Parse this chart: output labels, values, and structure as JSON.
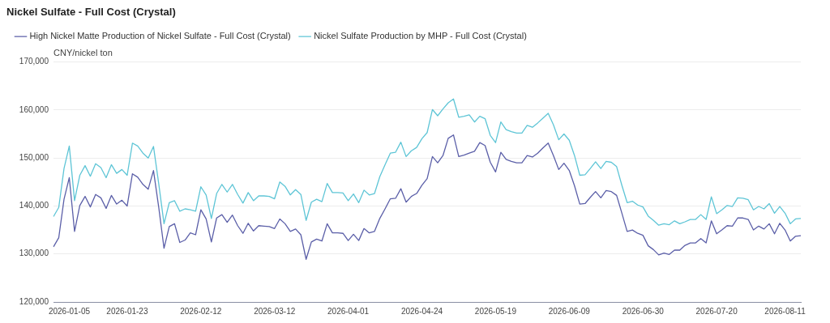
{
  "chart_data": {
    "type": "line",
    "title": "Nickel Sulfate - Full Cost (Crystal)",
    "ylabel": "CNY/nickel ton",
    "categories": [
      null,
      null,
      null,
      "2026-01-05",
      null,
      null,
      null,
      null,
      null,
      null,
      null,
      null,
      null,
      null,
      "2026-01-23",
      null,
      null,
      null,
      null,
      null,
      null,
      null,
      null,
      null,
      null,
      null,
      null,
      null,
      "2026-02-12",
      null,
      null,
      null,
      null,
      null,
      null,
      null,
      null,
      null,
      null,
      null,
      null,
      null,
      "2026-03-12",
      null,
      null,
      null,
      null,
      null,
      null,
      null,
      null,
      null,
      null,
      null,
      null,
      null,
      "2026-04-01",
      null,
      null,
      null,
      null,
      null,
      null,
      null,
      null,
      null,
      null,
      null,
      null,
      null,
      "2026-04-24",
      null,
      null,
      null,
      null,
      null,
      null,
      null,
      null,
      null,
      null,
      null,
      null,
      null,
      "2026-05-19",
      null,
      null,
      null,
      null,
      null,
      null,
      null,
      null,
      null,
      null,
      null,
      null,
      null,
      "2026-06-09",
      null,
      null,
      null,
      null,
      null,
      null,
      null,
      null,
      null,
      null,
      null,
      null,
      null,
      "2026-06-30",
      null,
      null,
      null,
      null,
      null,
      null,
      null,
      null,
      null,
      null,
      null,
      null,
      null,
      "2026-07-20",
      null,
      null,
      null,
      null,
      null,
      null,
      null,
      null,
      null,
      null,
      null,
      null,
      "2026-08-11",
      null,
      null,
      null
    ],
    "series": [
      {
        "name": "High Nickel Matte Production of Nickel Sulfate - Full Cost (Crystal)",
        "color": "#5b5fa8",
        "values": [
          131500,
          133400,
          141400,
          145900,
          134700,
          140100,
          142000,
          139800,
          142400,
          141700,
          139500,
          142200,
          140400,
          141200,
          140000,
          146700,
          146000,
          144500,
          143500,
          147400,
          139700,
          131200,
          135700,
          136300,
          132400,
          132900,
          134400,
          134000,
          139200,
          137300,
          132500,
          137500,
          138200,
          136600,
          138100,
          135900,
          134300,
          136400,
          134800,
          135900,
          135800,
          135700,
          135300,
          137300,
          136300,
          134700,
          135200,
          134000,
          128900,
          132500,
          133100,
          132700,
          136300,
          134400,
          134400,
          134300,
          132800,
          134100,
          132800,
          135300,
          134400,
          134700,
          137400,
          139400,
          141500,
          141600,
          143600,
          140800,
          142000,
          142600,
          144300,
          145700,
          150300,
          149000,
          150500,
          154100,
          154800,
          150300,
          150600,
          151000,
          151400,
          153200,
          152600,
          149100,
          147100,
          151200,
          149700,
          149300,
          149000,
          149000,
          150500,
          150200,
          151000,
          152100,
          153100,
          150500,
          147600,
          148900,
          147400,
          144200,
          140400,
          140500,
          141800,
          143000,
          141700,
          143200,
          143000,
          142200,
          138500,
          134700,
          135000,
          134300,
          133900,
          131700,
          130900,
          129800,
          130200,
          129900,
          130800,
          130800,
          131800,
          132300,
          132300,
          133200,
          132300,
          136900,
          134200,
          135000,
          135900,
          135800,
          137500,
          137500,
          137200,
          135000,
          135800,
          135200,
          136300,
          134200,
          136400,
          135000,
          132700,
          133700,
          133800
        ]
      },
      {
        "name": "Nickel Sulfate Production by MHP - Full Cost (Crystal)",
        "color": "#5ec5d6",
        "values": [
          137800,
          139700,
          147800,
          152500,
          141100,
          146400,
          148400,
          146200,
          148800,
          148000,
          145900,
          148600,
          146800,
          147600,
          146400,
          153100,
          152500,
          151000,
          150000,
          152400,
          144600,
          136300,
          140700,
          141100,
          138900,
          139400,
          139200,
          138900,
          144000,
          142300,
          137400,
          142600,
          144500,
          142900,
          144500,
          142400,
          140600,
          142800,
          141100,
          142100,
          142100,
          142000,
          141500,
          145000,
          144100,
          142300,
          143400,
          142400,
          137000,
          140800,
          141400,
          140900,
          144700,
          142800,
          142800,
          142700,
          141100,
          142500,
          140700,
          143300,
          142300,
          142600,
          146100,
          148600,
          151000,
          151200,
          153300,
          150300,
          151500,
          152200,
          154000,
          155300,
          160100,
          158800,
          160200,
          161500,
          162300,
          158500,
          158700,
          159000,
          157500,
          158700,
          158200,
          154700,
          153200,
          157500,
          155900,
          155500,
          155200,
          155200,
          156800,
          156400,
          157300,
          158300,
          159300,
          156900,
          153800,
          155000,
          153700,
          150500,
          146400,
          146500,
          147800,
          149200,
          147800,
          149300,
          149100,
          148200,
          144300,
          140700,
          141000,
          140200,
          139800,
          137900,
          137000,
          136000,
          136300,
          136100,
          136900,
          136300,
          136700,
          137200,
          137200,
          138200,
          137200,
          141900,
          138400,
          139200,
          140100,
          139900,
          141700,
          141600,
          141300,
          139200,
          139900,
          139400,
          140500,
          138500,
          139900,
          138500,
          136300,
          137300,
          137400
        ]
      }
    ],
    "ylim": [
      120000,
      170000
    ],
    "yticks": [
      {
        "value": 120000,
        "label": "120,000"
      },
      {
        "value": 130000,
        "label": "130,000"
      },
      {
        "value": 140000,
        "label": "140,000"
      },
      {
        "value": 150000,
        "label": "150,000"
      },
      {
        "value": 160000,
        "label": "160,000"
      },
      {
        "value": 170000,
        "label": "170,000"
      }
    ],
    "grid": "y",
    "legend": "top left",
    "marker": "none",
    "line_style": "solid"
  }
}
